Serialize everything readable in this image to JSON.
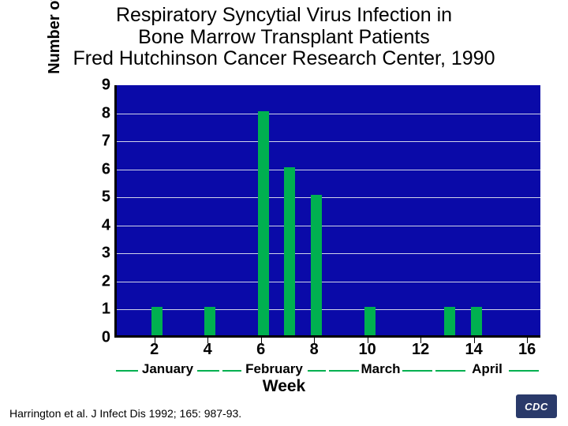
{
  "title_line1": "Respiratory Syncytial Virus Infection in",
  "title_line2": "Bone Marrow Transplant Patients",
  "title_line3": "Fred Hutchinson Cancer Research Center, 1990",
  "ylabel": "Number of patients diagnosed",
  "xlabel": "Week",
  "citation": "Harrington et al.  J Infect Dis 1992; 165: 987-93.",
  "logo_text": "CDC",
  "chart": {
    "type": "bar",
    "background_color": "#0a0aa8",
    "grid_color": "#d0d4e8",
    "grid_width": 1,
    "bar_color": "#00b050",
    "bar_width_ratio": 0.42,
    "ylim": [
      0,
      9
    ],
    "ytick_step": 1,
    "yticks": [
      0,
      1,
      2,
      3,
      4,
      5,
      6,
      7,
      8,
      9
    ],
    "xticks": [
      2,
      4,
      6,
      8,
      10,
      12,
      14,
      16
    ],
    "x_values": [
      1,
      2,
      3,
      4,
      5,
      6,
      7,
      8,
      9,
      10,
      11,
      12,
      13,
      14,
      15,
      16
    ],
    "y_values": [
      0,
      1,
      0,
      1,
      0,
      8,
      6,
      5,
      0,
      1,
      0,
      0,
      1,
      1,
      0,
      0
    ],
    "months": [
      {
        "label": "January",
        "start": 1,
        "end": 4
      },
      {
        "label": "February",
        "start": 5,
        "end": 8
      },
      {
        "label": "March",
        "start": 9,
        "end": 12
      },
      {
        "label": "April",
        "start": 13,
        "end": 16
      }
    ],
    "month_line_color": "#00b050",
    "axis_color": "#000000",
    "tick_fontsize": 20,
    "label_fontsize": 20
  }
}
